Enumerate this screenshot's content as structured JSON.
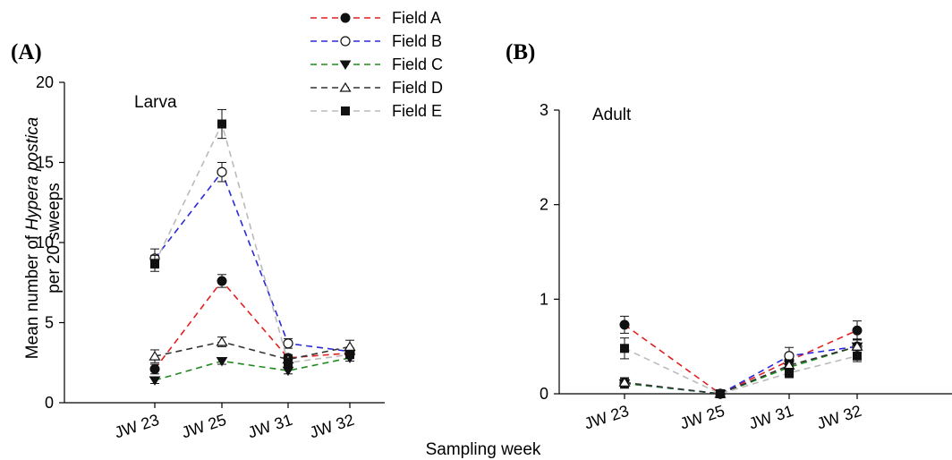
{
  "figure": {
    "xlabel": "Sampling week",
    "ylabel_line1_prefix": "Mean number of ",
    "ylabel_line1_italic": "Hypera postica",
    "ylabel_line2": "per 20 sweeps"
  },
  "legend": [
    {
      "name": "Field A",
      "color": "#e02020",
      "marker": "filled-circle"
    },
    {
      "name": "Field B",
      "color": "#2a2ad8",
      "marker": "open-circle"
    },
    {
      "name": "Field C",
      "color": "#1e8a1e",
      "marker": "filled-triangle-down"
    },
    {
      "name": "Field D",
      "color": "#333333",
      "marker": "open-triangle-up"
    },
    {
      "name": "Field E",
      "color": "#bbbbbb",
      "marker": "filled-square"
    }
  ],
  "chart_data": [
    {
      "type": "line",
      "panel_label": "(A)",
      "annotation": "Larva",
      "categories": [
        "JW 23",
        "JW 25",
        "JW 31",
        "JW 32"
      ],
      "ylim": [
        0,
        20
      ],
      "yticks": [
        0,
        5,
        10,
        15,
        20
      ],
      "grid": false,
      "series": [
        {
          "name": "Field A",
          "values": [
            2.1,
            7.6,
            2.8,
            3.1
          ],
          "errors": [
            0.3,
            0.4,
            0.2,
            0.2
          ]
        },
        {
          "name": "Field B",
          "values": [
            9.0,
            14.4,
            3.7,
            3.2
          ],
          "errors": [
            0.6,
            0.6,
            0.3,
            0.2
          ]
        },
        {
          "name": "Field C",
          "values": [
            1.4,
            2.6,
            2.0,
            2.8
          ],
          "errors": [
            0.2,
            0.2,
            0.2,
            0.2
          ]
        },
        {
          "name": "Field D",
          "values": [
            2.9,
            3.8,
            2.7,
            3.5
          ],
          "errors": [
            0.4,
            0.3,
            0.3,
            0.4
          ]
        },
        {
          "name": "Field E",
          "values": [
            8.7,
            17.4,
            2.5,
            3.0
          ],
          "errors": [
            0.5,
            0.9,
            0.3,
            0.2
          ]
        }
      ]
    },
    {
      "type": "line",
      "panel_label": "(B)",
      "annotation": "Adult",
      "categories": [
        "JW 23",
        "JW 25",
        "JW 31",
        "JW 32"
      ],
      "ylim": [
        0,
        3
      ],
      "yticks": [
        0,
        1,
        2,
        3
      ],
      "grid": false,
      "series": [
        {
          "name": "Field A",
          "values": [
            0.73,
            0.0,
            0.35,
            0.67
          ],
          "errors": [
            0.09,
            0.0,
            0.06,
            0.1
          ]
        },
        {
          "name": "Field B",
          "values": [
            0.11,
            0.0,
            0.4,
            0.5
          ],
          "errors": [
            0.05,
            0.0,
            0.09,
            0.08
          ]
        },
        {
          "name": "Field C",
          "values": [
            0.11,
            0.0,
            0.28,
            0.5
          ],
          "errors": [
            0.05,
            0.0,
            0.06,
            0.07
          ]
        },
        {
          "name": "Field D",
          "values": [
            0.12,
            0.0,
            0.3,
            0.5
          ],
          "errors": [
            0.05,
            0.0,
            0.06,
            0.07
          ]
        },
        {
          "name": "Field E",
          "values": [
            0.48,
            0.0,
            0.22,
            0.4
          ],
          "errors": [
            0.11,
            0.0,
            0.05,
            0.06
          ]
        }
      ]
    }
  ]
}
